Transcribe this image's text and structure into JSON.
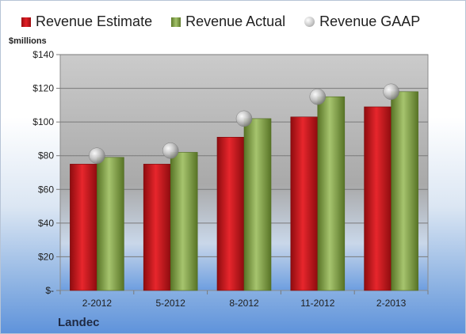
{
  "legend": {
    "estimate": "Revenue Estimate",
    "actual": "Revenue Actual",
    "gaap": "Revenue GAAP"
  },
  "unit_label": "$millions",
  "company": "Landec",
  "chart_data": {
    "type": "bar",
    "categories": [
      "2-2012",
      "5-2012",
      "8-2012",
      "11-2012",
      "2-2013"
    ],
    "series": [
      {
        "name": "Revenue Estimate",
        "values": [
          75,
          75,
          91,
          103,
          109
        ],
        "color": "#d7191f"
      },
      {
        "name": "Revenue Actual",
        "values": [
          79,
          82,
          102,
          115,
          118
        ],
        "color": "#93b35a"
      },
      {
        "name": "Revenue GAAP",
        "values": [
          80,
          83,
          102,
          115,
          118
        ],
        "marker": "sphere"
      }
    ],
    "ylabel": "$millions",
    "ylim": [
      0,
      140
    ],
    "yticks": [
      0,
      20,
      40,
      60,
      80,
      100,
      120,
      140
    ],
    "ytick_labels": [
      "$-",
      "$20",
      "$40",
      "$60",
      "$80",
      "$100",
      "$120",
      "$140"
    ],
    "grid": true,
    "legend_position": "top"
  }
}
